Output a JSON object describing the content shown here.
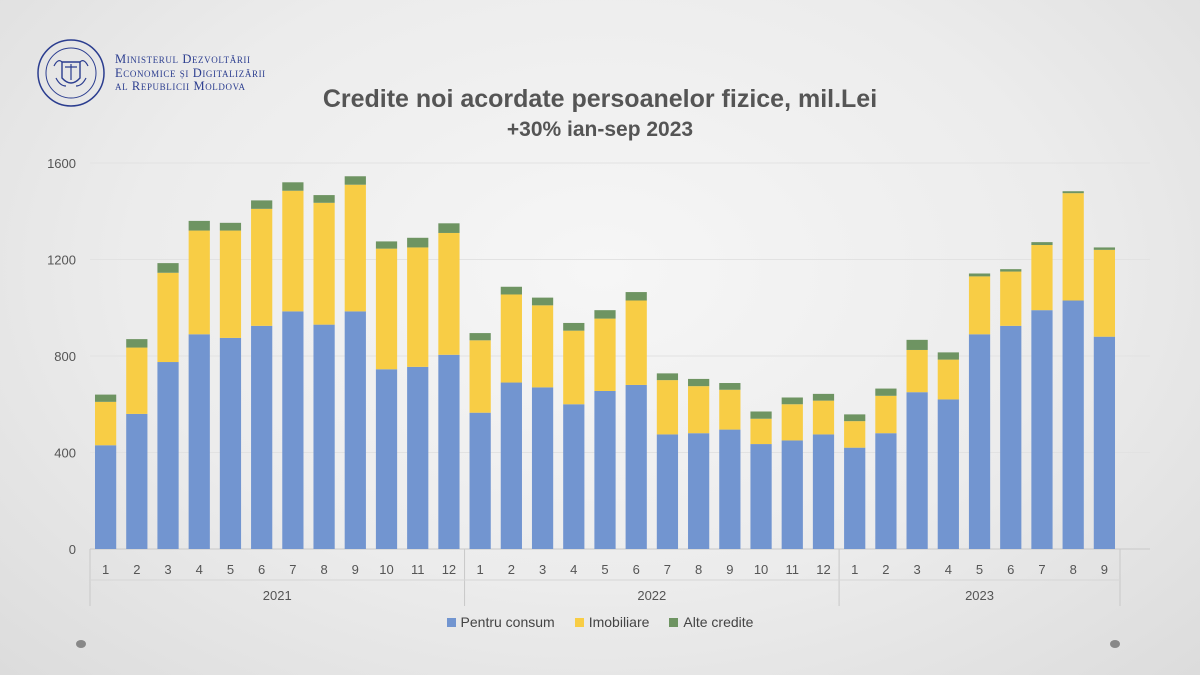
{
  "header": {
    "ministry_lines": [
      "Ministerul Dezvoltării",
      "Economice și Digitalizării",
      "al Republicii Moldova"
    ],
    "logo_icon": "moldova-government-seal-icon"
  },
  "chart_data": {
    "type": "bar",
    "stacked": true,
    "title": "Credite noi acordate persoanelor fizice, mil.Lei",
    "subtitle": "+30% ian-sep 2023",
    "xlabel": "",
    "ylabel": "",
    "ylim": [
      0,
      1600
    ],
    "yticks": [
      0,
      400,
      800,
      1200,
      1600
    ],
    "grid": true,
    "legend_position": "bottom",
    "groups": [
      {
        "label": "2021",
        "count": 12
      },
      {
        "label": "2022",
        "count": 12
      },
      {
        "label": "2023",
        "count": 9
      }
    ],
    "categories": [
      "1",
      "2",
      "3",
      "4",
      "5",
      "6",
      "7",
      "8",
      "9",
      "10",
      "11",
      "12",
      "1",
      "2",
      "3",
      "4",
      "5",
      "6",
      "7",
      "8",
      "9",
      "10",
      "11",
      "12",
      "1",
      "2",
      "3",
      "4",
      "5",
      "6",
      "7",
      "8",
      "9"
    ],
    "series": [
      {
        "name": "Pentru consum",
        "color": "#7295d0",
        "values": [
          430,
          560,
          775,
          890,
          875,
          925,
          985,
          930,
          985,
          745,
          755,
          805,
          565,
          690,
          670,
          600,
          655,
          680,
          475,
          480,
          495,
          435,
          450,
          475,
          420,
          480,
          650,
          620,
          890,
          925,
          990,
          1030,
          880
        ]
      },
      {
        "name": "Imobiliare",
        "color": "#f8cd45",
        "values": [
          180,
          275,
          370,
          430,
          445,
          485,
          500,
          505,
          525,
          500,
          495,
          505,
          300,
          365,
          340,
          305,
          300,
          350,
          225,
          195,
          165,
          105,
          150,
          140,
          110,
          155,
          175,
          165,
          240,
          225,
          270,
          445,
          360
        ]
      },
      {
        "name": "Alte credite",
        "color": "#6e9462",
        "values": [
          30,
          35,
          40,
          40,
          32,
          35,
          35,
          32,
          35,
          30,
          40,
          40,
          30,
          32,
          32,
          32,
          35,
          35,
          28,
          30,
          28,
          30,
          28,
          28,
          28,
          30,
          42,
          30,
          12,
          10,
          12,
          8,
          10
        ]
      }
    ]
  }
}
